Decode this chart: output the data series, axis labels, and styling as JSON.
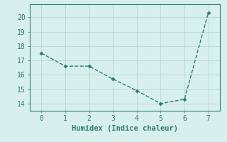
{
  "x": [
    0,
    1,
    2,
    3,
    4,
    5,
    6,
    7
  ],
  "y": [
    17.5,
    16.6,
    16.6,
    15.7,
    14.9,
    14.0,
    14.3,
    20.3
  ],
  "line_color": "#2d7d74",
  "marker": "D",
  "marker_size": 2.5,
  "background_color": "#d8f0ec",
  "grid_color": "#b8d8d4",
  "xlabel": "Humidex (Indice chaleur)",
  "xlabel_fontsize": 7.5,
  "xlim": [
    -0.5,
    7.5
  ],
  "ylim": [
    13.5,
    20.9
  ],
  "yticks": [
    14,
    15,
    16,
    17,
    18,
    19,
    20
  ],
  "xticks": [
    0,
    1,
    2,
    3,
    4,
    5,
    6,
    7
  ],
  "tick_fontsize": 7,
  "line_style": "--",
  "line_width": 1.0
}
